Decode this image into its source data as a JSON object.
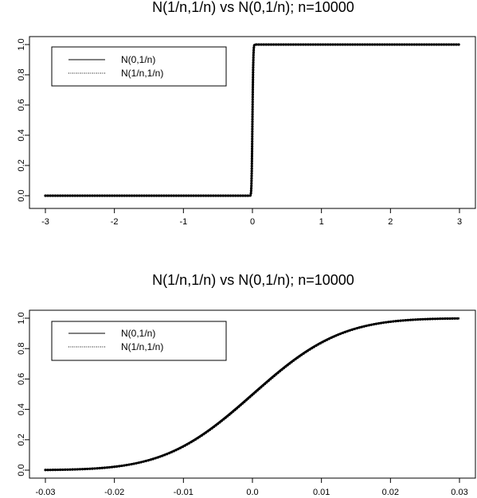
{
  "chart_data": [
    {
      "type": "line",
      "title": "N(1/n,1/n) vs N(0,1/n); n=10000",
      "xlabel": "",
      "ylabel": "",
      "xlim": [
        -3,
        3
      ],
      "ylim": [
        0,
        1
      ],
      "x_ticks": [
        "-3",
        "-2",
        "-1",
        "0",
        "1",
        "2",
        "3"
      ],
      "y_ticks": [
        "0.0",
        "0.2",
        "0.4",
        "0.6",
        "0.8",
        "1.0"
      ],
      "legend_position": "top-left",
      "n": 10000,
      "series": [
        {
          "name": "N(0,1/n)",
          "style": "solid",
          "distribution": "normal-cdf",
          "mean": 0,
          "sd": 0.01
        },
        {
          "name": "N(1/n,1/n)",
          "style": "dotted",
          "distribution": "normal-cdf",
          "mean": 0.0001,
          "sd": 0.01
        }
      ]
    },
    {
      "type": "line",
      "title": "N(1/n,1/n) vs N(0,1/n); n=10000",
      "xlabel": "",
      "ylabel": "",
      "xlim": [
        -0.03,
        0.03
      ],
      "ylim": [
        0,
        1
      ],
      "x_ticks": [
        "-0.03",
        "-0.02",
        "-0.01",
        "0.0",
        "0.01",
        "0.02",
        "0.03"
      ],
      "y_ticks": [
        "0.0",
        "0.2",
        "0.4",
        "0.6",
        "0.8",
        "1.0"
      ],
      "legend_position": "top-left",
      "n": 10000,
      "series": [
        {
          "name": "N(0,1/n)",
          "style": "solid",
          "distribution": "normal-cdf",
          "mean": 0,
          "sd": 0.01
        },
        {
          "name": "N(1/n,1/n)",
          "style": "dotted",
          "distribution": "normal-cdf",
          "mean": 0.0001,
          "sd": 0.01
        }
      ]
    }
  ]
}
